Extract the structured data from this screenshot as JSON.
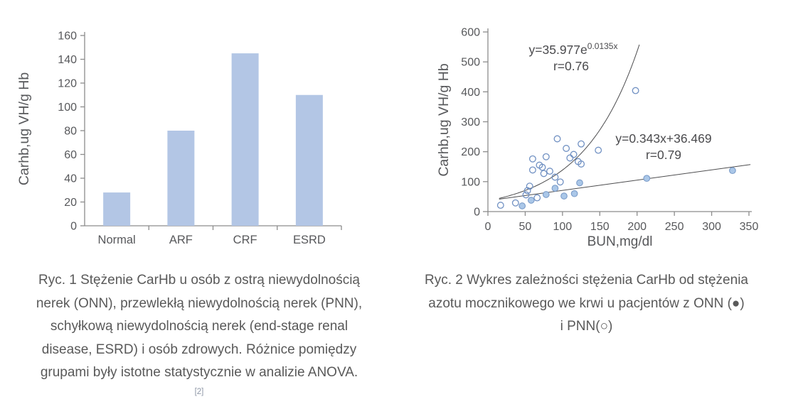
{
  "figure1": {
    "caption_lines": [
      "Ryc. 1 Stężenie CarHb u osób z ostrą niewydolnością",
      "nerek (ONN), przewlekłą niewydolnością nerek (PNN),",
      "schyłkową niewydolnością nerek (end-stage renal",
      "disease, ESRD) i osób zdrowych. Różnice pomiędzy",
      "grupami były istotne statystycznie w analizie ANOVA."
    ],
    "citation": "[2]"
  },
  "figure2": {
    "caption_lines": [
      "Ryc. 2 Wykres zależności stężenia CarHb od stężenia",
      "azotu mocznikowego we krwi u pacjentów z ONN (●)",
      "i PNN(○)"
    ]
  },
  "chart_data": [
    {
      "type": "bar",
      "title": "",
      "categories": [
        "Normal",
        "ARF",
        "CRF",
        "ESRD"
      ],
      "values": [
        28,
        80,
        145,
        110
      ],
      "xlabel": "",
      "ylabel": "Carhb,ug VH/g Hb",
      "ylim": [
        0,
        160
      ],
      "ytick_step": 20,
      "grid": false,
      "bar_color": "#b3c6e5",
      "axis_color": "#8c8c8c",
      "text_color": "#57585b"
    },
    {
      "type": "scatter",
      "title": "",
      "xlabel": "BUN,mg/dl",
      "ylabel": "Carhb,ug VH/g Hb",
      "xlim": [
        0,
        350
      ],
      "xtick_step": 50,
      "ylim": [
        0,
        600
      ],
      "ytick_step": 100,
      "grid": false,
      "axis_color": "#8c8c8c",
      "text_color": "#57585b",
      "line_color": "#4d4d4f",
      "series": [
        {
          "name": "PNN",
          "marker": "open",
          "stroke": "#7191c3",
          "fill": "none",
          "points": [
            [
              17,
              21
            ],
            [
              37,
              29
            ],
            [
              51,
              56
            ],
            [
              53,
              70
            ],
            [
              56,
              85
            ],
            [
              60,
              139
            ],
            [
              60,
              176
            ],
            [
              66,
              46
            ],
            [
              69,
              155
            ],
            [
              73,
              148
            ],
            [
              75,
              127
            ],
            [
              78,
              183
            ],
            [
              83,
              135
            ],
            [
              90,
              115
            ],
            [
              93,
              243
            ],
            [
              97,
              99
            ],
            [
              105,
              211
            ],
            [
              110,
              179
            ],
            [
              115,
              191
            ],
            [
              121,
              167
            ],
            [
              125,
              159
            ],
            [
              125,
              226
            ],
            [
              148,
              205
            ],
            [
              198,
              404
            ]
          ]
        },
        {
          "name": "ONN",
          "marker": "filled",
          "stroke": "#7b9cc9",
          "fill": "#aac7e8",
          "points": [
            [
              46,
              19
            ],
            [
              58,
              38
            ],
            [
              78,
              57
            ],
            [
              90,
              78
            ],
            [
              102,
              52
            ],
            [
              116,
              60
            ],
            [
              123,
              96
            ],
            [
              213,
              111
            ],
            [
              328,
              137
            ]
          ]
        }
      ],
      "fits": [
        {
          "type": "exponential",
          "equation": "y=35.977e",
          "exponent": "0.0135x",
          "r_label": "r=0.76",
          "a": 35.977,
          "b": 0.0135,
          "x_range": [
            15,
            203
          ]
        },
        {
          "type": "linear",
          "equation": "y=0.343x+36.469",
          "r_label": "r=0.79",
          "slope": 0.343,
          "intercept": 36.469,
          "x_range": [
            15,
            352
          ]
        }
      ]
    }
  ]
}
